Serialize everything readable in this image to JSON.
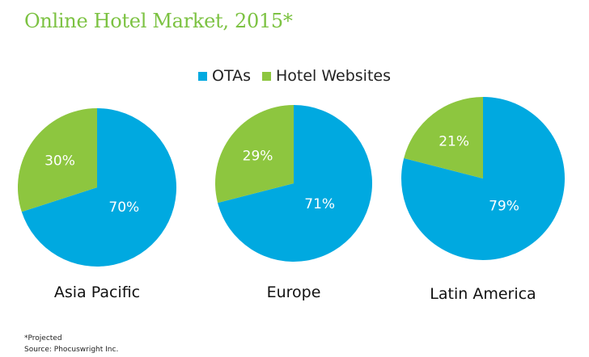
{
  "title": "Online Hotel Market, 2015*",
  "colors": {
    "title": "#7cc242",
    "otas": "#00a9e0",
    "hotel": "#8dc63f",
    "label": "#ffffff"
  },
  "legend": [
    {
      "name": "OTAs",
      "color": "#00a9e0"
    },
    {
      "name": "Hotel Websites",
      "color": "#8dc63f"
    }
  ],
  "chart_data": [
    {
      "type": "pie",
      "title": "Asia Pacific",
      "slices": [
        {
          "name": "OTAs",
          "value": 70,
          "label": "70%"
        },
        {
          "name": "Hotel Websites",
          "value": 30,
          "label": "30%"
        }
      ]
    },
    {
      "type": "pie",
      "title": "Europe",
      "slices": [
        {
          "name": "OTAs",
          "value": 71,
          "label": "71%"
        },
        {
          "name": "Hotel Websites",
          "value": 29,
          "label": "29%"
        }
      ]
    },
    {
      "type": "pie",
      "title": "Latin America",
      "slices": [
        {
          "name": "OTAs",
          "value": 79,
          "label": "79%"
        },
        {
          "name": "Hotel Websites",
          "value": 21,
          "label": "21%"
        }
      ]
    }
  ],
  "footer": {
    "note": "*Projected",
    "source": "Source: Phocuswright Inc."
  }
}
